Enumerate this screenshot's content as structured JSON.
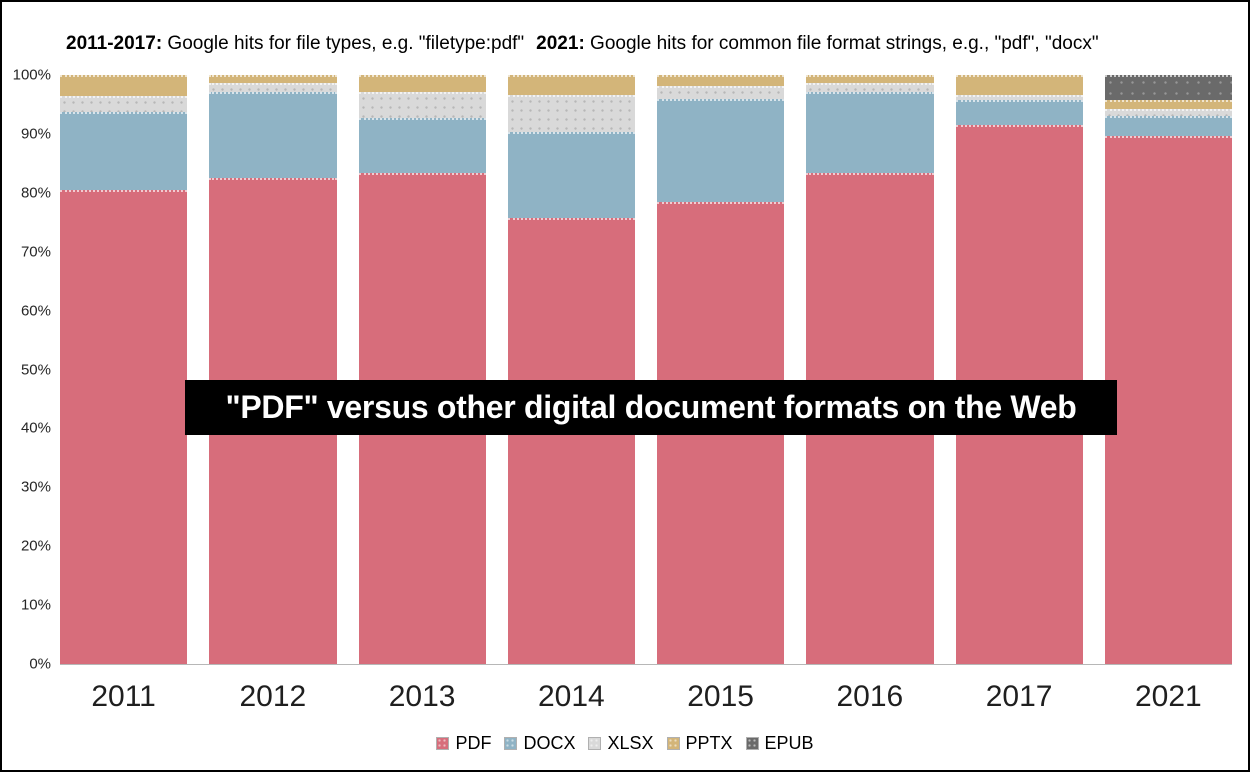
{
  "header": {
    "range1_label": "2011-2017:",
    "range1_desc": " Google hits for file types, e.g. \"filetype:pdf\"",
    "range2_label": "2021:",
    "range2_desc": " Google hits for common file format strings, e.g., \"pdf\", \"docx\""
  },
  "overlay_title": "\"PDF\" versus other digital document formats on the Web",
  "chart_data": {
    "type": "bar",
    "stacked": true,
    "stacking": "percent",
    "title": "\"PDF\" versus other digital document formats on the Web",
    "xlabel": "",
    "ylabel": "",
    "ylim": [
      0,
      100
    ],
    "grid": false,
    "legend_position": "bottom",
    "yticks": [
      "0%",
      "10%",
      "20%",
      "30%",
      "40%",
      "50%",
      "60%",
      "70%",
      "80%",
      "90%",
      "100%"
    ],
    "categories": [
      "2011",
      "2012",
      "2013",
      "2014",
      "2015",
      "2016",
      "2017",
      "2021"
    ],
    "series": [
      {
        "name": "PDF",
        "color": "#d76d7b",
        "values": [
          80.5,
          82.5,
          83.3,
          75.7,
          78.4,
          83.4,
          91.5,
          89.6
        ]
      },
      {
        "name": "DOCX",
        "color": "#8fb3c5",
        "values": [
          13.3,
          14.7,
          9.4,
          14.7,
          17.5,
          13.7,
          4.2,
          3.4
        ]
      },
      {
        "name": "XLSX",
        "color": "#d9d9d9",
        "values": [
          2.6,
          1.5,
          4.4,
          6.2,
          2.2,
          1.5,
          0.9,
          1.3
        ]
      },
      {
        "name": "PPTX",
        "color": "#d3b579",
        "values": [
          3.6,
          1.3,
          2.9,
          3.4,
          1.9,
          1.4,
          3.4,
          1.5
        ]
      },
      {
        "name": "EPUB",
        "color": "#6a6a6a",
        "values": [
          0,
          0,
          0,
          0,
          0,
          0,
          0,
          4.2
        ]
      }
    ]
  }
}
